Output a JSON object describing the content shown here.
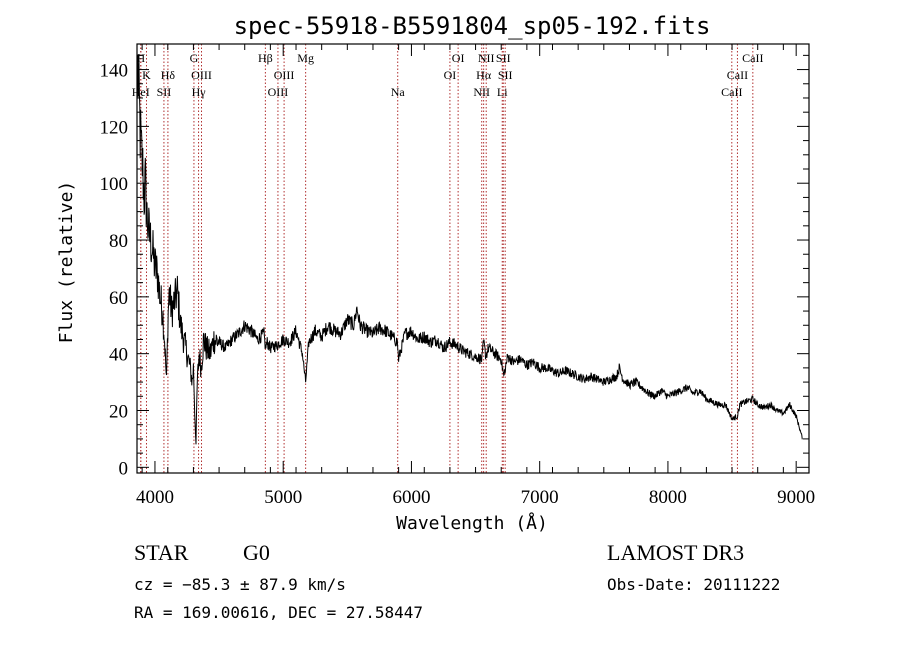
{
  "chart_data": {
    "type": "line",
    "title": "spec-55918-B5591804_sp05-192.fits",
    "xlabel": "Wavelength (Å)",
    "ylabel": "Flux (relative)",
    "xlim": [
      3860,
      9100
    ],
    "ylim": [
      -2,
      149
    ],
    "xticks": [
      4000,
      5000,
      6000,
      7000,
      8000,
      9000
    ],
    "yticks": [
      0,
      20,
      40,
      60,
      80,
      100,
      120,
      140
    ],
    "grid": false,
    "series": [
      {
        "name": "spectrum",
        "color": "#000000",
        "x": [
          3865,
          3875,
          3885,
          3895,
          3905,
          3915,
          3925,
          3935,
          3945,
          3955,
          3965,
          3975,
          3985,
          3995,
          4005,
          4020,
          4040,
          4060,
          4075,
          4090,
          4100,
          4110,
          4130,
          4150,
          4175,
          4200,
          4225,
          4250,
          4275,
          4290,
          4300,
          4310,
          4320,
          4330,
          4345,
          4360,
          4380,
          4400,
          4430,
          4460,
          4500,
          4550,
          4600,
          4650,
          4700,
          4750,
          4800,
          4850,
          4862,
          4875,
          4900,
          4950,
          5000,
          5050,
          5100,
          5150,
          5175,
          5200,
          5250,
          5300,
          5350,
          5400,
          5450,
          5500,
          5550,
          5575,
          5600,
          5650,
          5700,
          5750,
          5800,
          5850,
          5890,
          5900,
          5950,
          6000,
          6050,
          6100,
          6150,
          6200,
          6250,
          6300,
          6350,
          6400,
          6450,
          6500,
          6550,
          6563,
          6580,
          6600,
          6650,
          6700,
          6720,
          6750,
          6800,
          6850,
          6900,
          6950,
          7000,
          7050,
          7100,
          7150,
          7200,
          7250,
          7300,
          7350,
          7400,
          7450,
          7500,
          7550,
          7600,
          7620,
          7650,
          7700,
          7750,
          7800,
          7850,
          7900,
          7950,
          8000,
          8050,
          8100,
          8150,
          8200,
          8250,
          8300,
          8350,
          8400,
          8450,
          8500,
          8542,
          8560,
          8600,
          8662,
          8700,
          8750,
          8800,
          8850,
          8900,
          8950,
          9000,
          9050
        ],
        "values": [
          140,
          130,
          118,
          110,
          105,
          95,
          100,
          90,
          85,
          82,
          80,
          78,
          75,
          72,
          70,
          68,
          60,
          55,
          45,
          30,
          50,
          62,
          55,
          58,
          62,
          50,
          45,
          40,
          35,
          30,
          35,
          20,
          8,
          30,
          40,
          35,
          45,
          42,
          40,
          45,
          44,
          42,
          45,
          47,
          50,
          48,
          45,
          47,
          42,
          44,
          42,
          43,
          45,
          44,
          48,
          40,
          30,
          44,
          48,
          46,
          50,
          48,
          47,
          52,
          50,
          56,
          50,
          48,
          47,
          49,
          48,
          46,
          44,
          38,
          47,
          48,
          45,
          46,
          44,
          45,
          42,
          44,
          43,
          41,
          40,
          39,
          38,
          44,
          39,
          42,
          40,
          38,
          32,
          39,
          37,
          38,
          36,
          37,
          35,
          35,
          34,
          33,
          34,
          33,
          32,
          31,
          32,
          31,
          30,
          31,
          32,
          35,
          31,
          29,
          30,
          28,
          26,
          25,
          27,
          25,
          26,
          27,
          28,
          26,
          27,
          24,
          23,
          22,
          22,
          17,
          18,
          22,
          23,
          24,
          22,
          21,
          22,
          20,
          19,
          22,
          18,
          10
        ]
      }
    ],
    "spectral_lines": [
      {
        "label": "H",
        "wavelength": 3890,
        "row": 1
      },
      {
        "label": "K",
        "wavelength": 3934,
        "row": 2
      },
      {
        "label": "HeI",
        "wavelength": 3889,
        "row": 3
      },
      {
        "label": "SII",
        "wavelength": 4070,
        "row": 3
      },
      {
        "label": "Hδ",
        "wavelength": 4101,
        "row": 2
      },
      {
        "label": "G",
        "wavelength": 4304,
        "row": 1
      },
      {
        "label": "OIII",
        "wavelength": 4363,
        "row": 2
      },
      {
        "label": "Hγ",
        "wavelength": 4340,
        "row": 3
      },
      {
        "label": "Hβ",
        "wavelength": 4861,
        "row": 1
      },
      {
        "label": "OIII",
        "wavelength": 5007,
        "row": 2
      },
      {
        "label": "OIII",
        "wavelength": 4959,
        "row": 3
      },
      {
        "label": "Mg",
        "wavelength": 5175,
        "row": 1
      },
      {
        "label": "Na",
        "wavelength": 5893,
        "row": 3
      },
      {
        "label": "OI",
        "wavelength": 6364,
        "row": 1
      },
      {
        "label": "OI",
        "wavelength": 6300,
        "row": 2
      },
      {
        "label": "NII",
        "wavelength": 6583,
        "row": 1
      },
      {
        "label": "SII",
        "wavelength": 6716,
        "row": 1
      },
      {
        "label": "Hα",
        "wavelength": 6563,
        "row": 2
      },
      {
        "label": "SII",
        "wavelength": 6731,
        "row": 2
      },
      {
        "label": "NII",
        "wavelength": 6548,
        "row": 3
      },
      {
        "label": "Li",
        "wavelength": 6708,
        "row": 3
      },
      {
        "label": "CaII",
        "wavelength": 8662,
        "row": 1
      },
      {
        "label": "CaII",
        "wavelength": 8542,
        "row": 2
      },
      {
        "label": "CaII",
        "wavelength": 8498,
        "row": 3
      }
    ],
    "line_color": "#b03030"
  },
  "info": {
    "object_class": "STAR",
    "subclass": "G0",
    "survey": "LAMOST DR3",
    "redshift": "cz = −85.3 ± 87.9 km/s",
    "obs_date": "Obs-Date: 20111222",
    "coords": "RA = 169.00616, DEC =  27.58447"
  }
}
